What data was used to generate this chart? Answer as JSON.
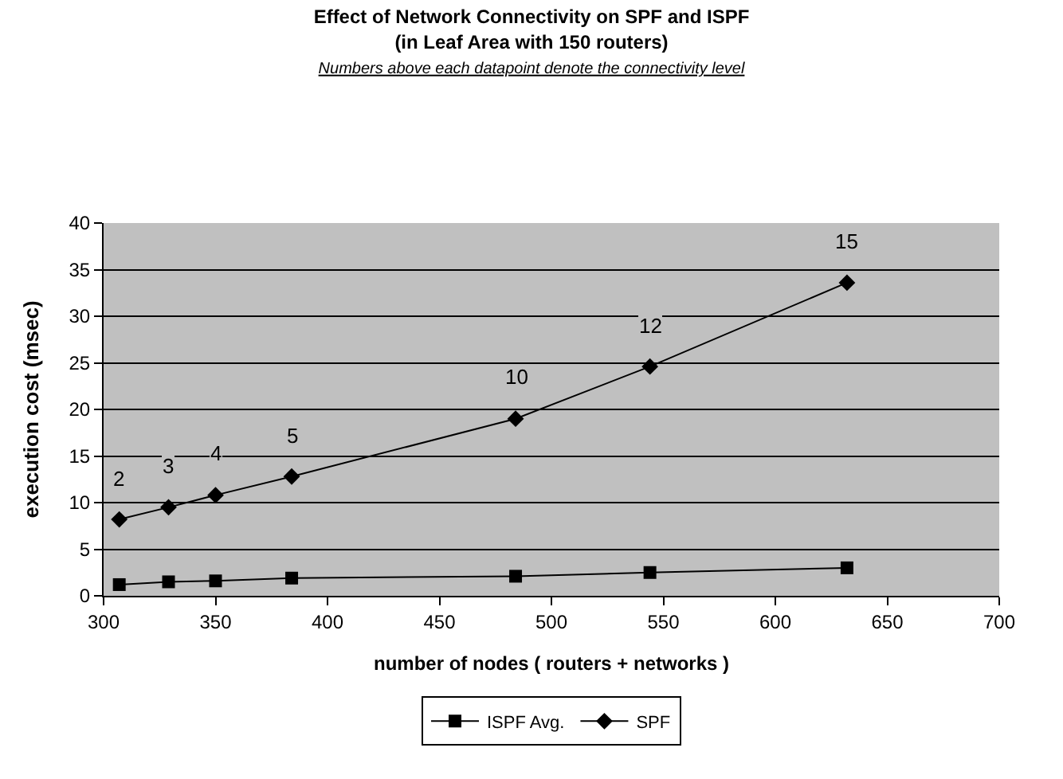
{
  "chart_data": {
    "type": "line",
    "title": "Effect of Network Connectivity on SPF and ISPF\n(in Leaf Area with 150 routers)",
    "subtitle": "Numbers above each datapoint denote the connectivity level",
    "xlabel": "number of nodes ( routers + networks )",
    "ylabel": "execution cost (msec)",
    "x": [
      307,
      329,
      350,
      384,
      484,
      544,
      632
    ],
    "series": [
      {
        "name": "ISPF Avg.",
        "color": "#000000",
        "marker": "square",
        "values": [
          1.2,
          1.5,
          1.6,
          1.9,
          2.1,
          2.5,
          3.0
        ]
      },
      {
        "name": "SPF",
        "color": "#000000",
        "marker": "diamond",
        "values": [
          8.2,
          9.5,
          10.8,
          12.8,
          19.0,
          24.6,
          33.6
        ]
      }
    ],
    "annotations": [
      {
        "text": "2",
        "x": 307,
        "y": 8.2
      },
      {
        "text": "3",
        "x": 329,
        "y": 9.5
      },
      {
        "text": "4",
        "x": 350,
        "y": 10.8
      },
      {
        "text": "5",
        "x": 384,
        "y": 12.8
      },
      {
        "text": "10",
        "x": 484,
        "y": 19.0
      },
      {
        "text": "12",
        "x": 544,
        "y": 24.6
      },
      {
        "text": "15",
        "x": 632,
        "y": 33.6
      }
    ],
    "xlim": [
      300,
      700
    ],
    "xticks": [
      300,
      350,
      400,
      450,
      500,
      550,
      600,
      650,
      700
    ],
    "ylim": [
      0,
      40
    ],
    "yticks": [
      0,
      5,
      10,
      15,
      20,
      25,
      30,
      35,
      40
    ],
    "grid": "y",
    "legend": "bottom",
    "line_style": "solid"
  }
}
